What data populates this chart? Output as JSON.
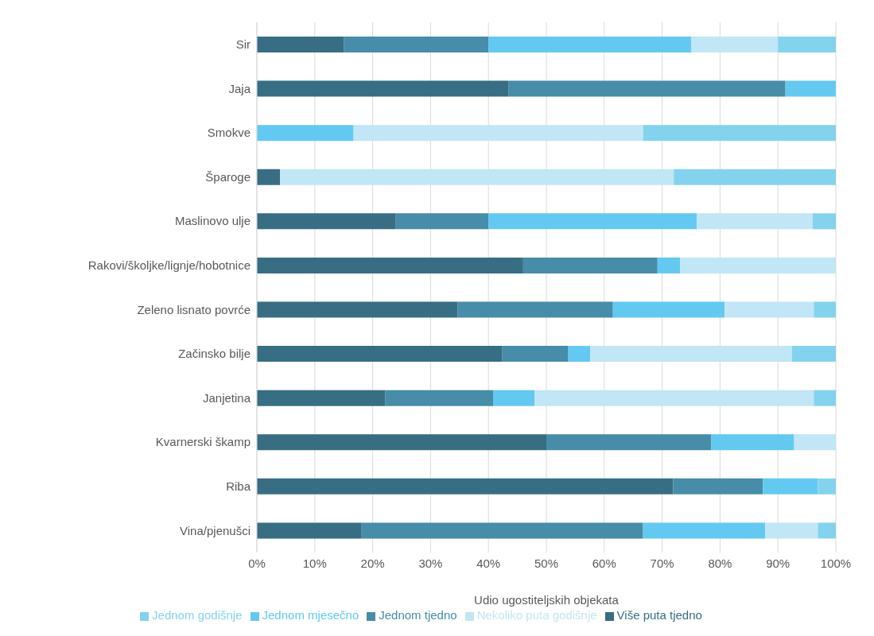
{
  "chart_data": {
    "type": "bar",
    "orientation": "horizontal",
    "stacked": true,
    "xlabel": "Udio ugostiteljskih objekata",
    "categories": [
      "Sir",
      "Jaja",
      "Smokve",
      "Šparoge",
      "Maslinovo ulje",
      "Rakovi/školjke/lignje/hobotnice",
      "Zeleno lisnato povrće",
      "Začinsko bilje",
      "Janjetina",
      "Kvarnerski škamp",
      "Riba",
      "Vina/pjenušci"
    ],
    "series": [
      {
        "name": "Više puta tjedno",
        "color": "#376e84",
        "values": [
          15,
          43.5,
          0,
          4,
          24,
          46,
          34.7,
          42.4,
          22.2,
          50,
          71.9,
          18.1
        ]
      },
      {
        "name": "Jednom tjedno",
        "color": "#478ca8",
        "values": [
          25,
          47.8,
          0,
          0,
          16,
          23.2,
          26.8,
          11.4,
          18.6,
          28.5,
          15.5,
          48.6
        ]
      },
      {
        "name": "Jednom mjesečno",
        "color": "#63c9f1",
        "values": [
          35,
          8.7,
          16.7,
          0,
          36,
          3.9,
          19.3,
          3.8,
          7.2,
          14.3,
          9.5,
          21.1
        ]
      },
      {
        "name": "Nekoliko puta godišnje",
        "color": "#c1e6f5",
        "values": [
          15,
          0,
          50,
          68,
          20,
          26.9,
          15.4,
          34.8,
          48.2,
          7.2,
          0,
          9.1
        ]
      },
      {
        "name": "Jednom godišnje",
        "color": "#84d3ee",
        "values": [
          10,
          0,
          33.3,
          28,
          4,
          0,
          3.8,
          7.6,
          3.8,
          0,
          3.1,
          3.1
        ]
      }
    ],
    "xlim": [
      0,
      100
    ],
    "xticks": [
      {
        "value": 0,
        "label": "0%"
      },
      {
        "value": 10,
        "label": "10%"
      },
      {
        "value": 20,
        "label": "20%"
      },
      {
        "value": 30,
        "label": "30%"
      },
      {
        "value": 40,
        "label": "40%"
      },
      {
        "value": 50,
        "label": "50%"
      },
      {
        "value": 60,
        "label": "60%"
      },
      {
        "value": 70,
        "label": "70%"
      },
      {
        "value": 80,
        "label": "80%"
      },
      {
        "value": 90,
        "label": "90%"
      },
      {
        "value": 100,
        "label": "100%"
      }
    ],
    "grid": "x",
    "legend": "bottom"
  }
}
